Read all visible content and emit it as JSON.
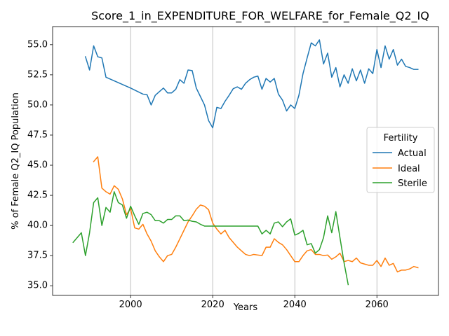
{
  "chart_data": {
    "type": "line",
    "title": "Score_1_in_EXPENDITURE_FOR_WELFARE_for_Female_Q2_IQ",
    "xlabel": "Years",
    "ylabel": "% of Female Q2_IQ Population",
    "xlim": [
      1981,
      2075
    ],
    "ylim": [
      34.2,
      56.5
    ],
    "xticks": [
      2000,
      2020,
      2040,
      2060
    ],
    "yticks": [
      35.0,
      37.5,
      40.0,
      42.5,
      45.0,
      47.5,
      50.0,
      52.5,
      55.0
    ],
    "grid": "vertical",
    "legend": {
      "title": "Fertility",
      "placement": "right",
      "entries": [
        "Actual",
        "Ideal",
        "Sterile"
      ]
    },
    "series": [
      {
        "name": "Actual",
        "color": "#1f77b4",
        "x": [
          1989,
          1990,
          1991,
          1992,
          1993,
          1994,
          2000,
          2003,
          2004,
          2005,
          2006,
          2007,
          2008,
          2009,
          2010,
          2011,
          2012,
          2013,
          2014,
          2015,
          2016,
          2017,
          2018,
          2019,
          2020,
          2021,
          2022,
          2023,
          2024,
          2025,
          2026,
          2027,
          2028,
          2029,
          2030,
          2031,
          2032,
          2033,
          2034,
          2035,
          2036,
          2037,
          2038,
          2039,
          2040,
          2041,
          2042,
          2043,
          2044,
          2045,
          2046,
          2047,
          2048,
          2049,
          2050,
          2051,
          2052,
          2053,
          2054,
          2055,
          2056,
          2057,
          2058,
          2059,
          2060,
          2061,
          2062,
          2063,
          2064,
          2065,
          2066,
          2067,
          2068,
          2069,
          2070
        ],
        "values": [
          54.0,
          52.9,
          54.9,
          54.0,
          53.9,
          52.3,
          51.4,
          50.9,
          50.85,
          50.0,
          50.8,
          51.1,
          51.4,
          51.0,
          51.0,
          51.3,
          52.1,
          51.8,
          52.9,
          52.85,
          51.4,
          50.7,
          50.0,
          48.7,
          48.1,
          49.8,
          49.7,
          50.3,
          50.8,
          51.35,
          51.5,
          51.3,
          51.8,
          52.1,
          52.3,
          52.4,
          51.3,
          52.2,
          51.9,
          52.2,
          50.9,
          50.4,
          49.5,
          50.0,
          49.7,
          50.8,
          52.6,
          53.9,
          55.15,
          54.9,
          55.4,
          53.4,
          54.3,
          52.3,
          53.1,
          51.5,
          52.5,
          51.8,
          53.0,
          52.0,
          52.9,
          51.8,
          53.0,
          52.6,
          54.6,
          53.1,
          54.9,
          53.8,
          54.6,
          53.3,
          53.8,
          53.2,
          53.1,
          52.95,
          52.95
        ]
      },
      {
        "name": "Ideal",
        "color": "#ff7f0e",
        "x": [
          1991,
          1992,
          1993,
          1994,
          1995,
          1996,
          1997,
          1998,
          1999,
          2000,
          2001,
          2002,
          2003,
          2004,
          2005,
          2006,
          2007,
          2008,
          2009,
          2010,
          2011,
          2012,
          2013,
          2014,
          2015,
          2016,
          2017,
          2018,
          2019,
          2020,
          2021,
          2022,
          2023,
          2024,
          2025,
          2026,
          2027,
          2028,
          2029,
          2030,
          2031,
          2032,
          2033,
          2034,
          2035,
          2036,
          2037,
          2038,
          2039,
          2040,
          2041,
          2042,
          2043,
          2044,
          2045,
          2046,
          2047,
          2048,
          2049,
          2050,
          2051,
          2052,
          2053,
          2054,
          2055,
          2056,
          2057,
          2058,
          2059,
          2060,
          2061,
          2062,
          2063,
          2064,
          2065,
          2066,
          2067,
          2068,
          2069,
          2070
        ],
        "values": [
          45.3,
          45.7,
          43.1,
          42.8,
          42.6,
          43.3,
          43.0,
          42.2,
          40.9,
          41.4,
          39.8,
          39.7,
          40.1,
          39.3,
          38.7,
          37.9,
          37.4,
          37.0,
          37.5,
          37.6,
          38.2,
          38.9,
          39.6,
          40.3,
          40.8,
          41.35,
          41.7,
          41.6,
          41.3,
          40.2,
          39.7,
          39.3,
          39.6,
          39.0,
          38.6,
          38.2,
          37.9,
          37.6,
          37.5,
          37.6,
          37.55,
          37.5,
          38.2,
          38.2,
          38.9,
          38.6,
          38.4,
          38.0,
          37.5,
          37.0,
          37.0,
          37.5,
          37.9,
          38.0,
          37.6,
          37.6,
          37.5,
          37.55,
          37.2,
          37.4,
          37.7,
          37.0,
          37.1,
          37.0,
          37.3,
          36.9,
          36.8,
          36.7,
          36.7,
          37.1,
          36.6,
          37.3,
          36.7,
          36.85,
          36.15,
          36.3,
          36.3,
          36.4,
          36.6,
          36.5
        ]
      },
      {
        "name": "Sterile",
        "color": "#2ca02c",
        "x": [
          1986,
          1988,
          1989,
          1990,
          1991,
          1992,
          1993,
          1994,
          1995,
          1996,
          1997,
          1998,
          1999,
          2000,
          2001,
          2002,
          2003,
          2004,
          2005,
          2006,
          2007,
          2008,
          2009,
          2010,
          2011,
          2012,
          2013,
          2014,
          2015,
          2016,
          2017,
          2018,
          2019,
          2020,
          2021,
          2022,
          2023,
          2024,
          2025,
          2026,
          2027,
          2028,
          2029,
          2030,
          2031,
          2032,
          2033,
          2034,
          2035,
          2036,
          2037,
          2038,
          2039,
          2040,
          2041,
          2042,
          2043,
          2044,
          2045,
          2046,
          2047,
          2048,
          2049,
          2050,
          2051,
          2052,
          2053
        ],
        "values": [
          38.6,
          39.4,
          37.5,
          39.4,
          41.9,
          42.3,
          40.0,
          41.5,
          41.1,
          42.8,
          41.9,
          41.7,
          40.6,
          41.6,
          40.8,
          40.1,
          41.0,
          41.1,
          40.9,
          40.4,
          40.4,
          40.2,
          40.5,
          40.5,
          40.8,
          40.8,
          40.4,
          40.45,
          40.35,
          40.3,
          40.1,
          39.95,
          39.95,
          39.95,
          39.95,
          39.95,
          39.95,
          39.95,
          39.95,
          39.95,
          39.95,
          39.95,
          39.95,
          39.95,
          39.95,
          39.3,
          39.6,
          39.3,
          40.2,
          40.3,
          39.9,
          40.3,
          40.55,
          39.2,
          39.35,
          39.6,
          38.4,
          38.5,
          37.7,
          38.0,
          39.0,
          40.8,
          39.4,
          41.15,
          39.0,
          36.9,
          35.1
        ]
      }
    ]
  }
}
